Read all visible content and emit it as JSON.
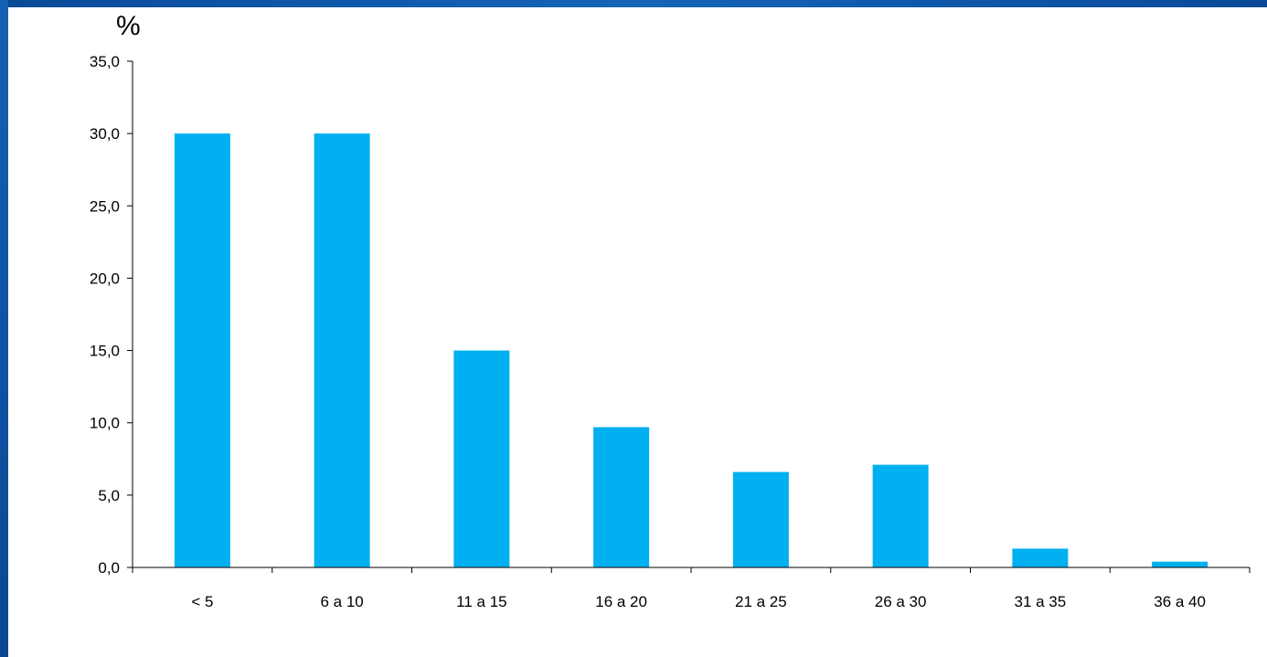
{
  "chart_data": {
    "type": "bar",
    "ylabel": "%",
    "categories": [
      "< 5",
      "6 a 10",
      "11 a 15",
      "16 a 20",
      "21 a 25",
      "26 a 30",
      "31 a 35",
      "36 a 40"
    ],
    "values": [
      30.0,
      30.0,
      15.0,
      9.7,
      6.6,
      7.1,
      1.3,
      0.4
    ],
    "ylim": [
      0,
      35
    ],
    "yticks": [
      "0,0",
      "5,0",
      "10,0",
      "15,0",
      "20,0",
      "25,0",
      "30,0",
      "35,0"
    ],
    "grid": false,
    "legend": "none",
    "bar_color": "#00b0f0",
    "frame_color": "#0b4f9e"
  }
}
